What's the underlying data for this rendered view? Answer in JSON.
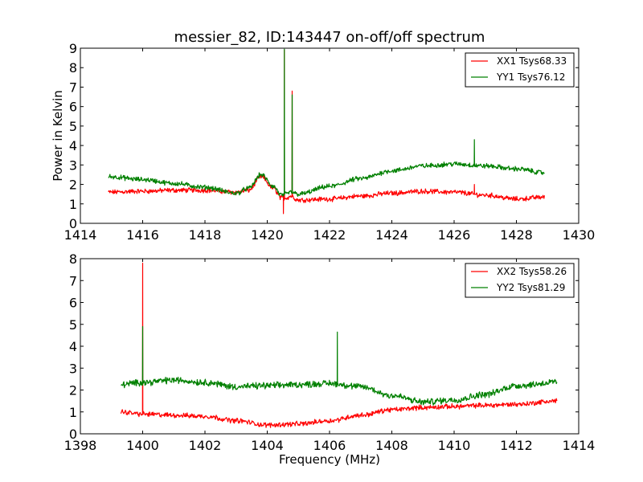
{
  "chart_data": [
    {
      "type": "line",
      "title": "messier_82, ID:143447 on-off/off spectrum",
      "xlabel": "",
      "ylabel": "Power in Kelvin",
      "xlim": [
        1414,
        1430
      ],
      "ylim": [
        0,
        9
      ],
      "xticks": [
        "1414",
        "1416",
        "1418",
        "1420",
        "1422",
        "1424",
        "1426",
        "1428",
        "1430"
      ],
      "yticks": [
        "0",
        "1",
        "2",
        "3",
        "4",
        "5",
        "6",
        "7",
        "8",
        "9"
      ],
      "legend_position": "top-right",
      "grid": false,
      "series": [
        {
          "name": "XX1 Tsys68.33",
          "color": "#ff0000",
          "noise": 0.1,
          "x": [
            1414.9,
            1416.0,
            1417.0,
            1418.0,
            1419.0,
            1419.4,
            1419.8,
            1420.2,
            1420.45,
            1420.6,
            1420.75,
            1421.0,
            1422.0,
            1423.0,
            1424.0,
            1425.0,
            1426.0,
            1427.0,
            1428.0,
            1428.9
          ],
          "y": [
            1.6,
            1.65,
            1.7,
            1.7,
            1.6,
            1.7,
            2.4,
            1.8,
            1.3,
            1.3,
            1.4,
            1.2,
            1.25,
            1.4,
            1.55,
            1.65,
            1.6,
            1.45,
            1.25,
            1.35
          ],
          "peaks": [
            {
              "x": 1420.55,
              "y": 8.9
            },
            {
              "x": 1420.8,
              "y": 6.8
            },
            {
              "x": 1420.52,
              "y": 0.5
            },
            {
              "x": 1426.65,
              "y": 2.0
            }
          ]
        },
        {
          "name": "YY1 Tsys76.12",
          "color": "#008000",
          "noise": 0.1,
          "x": [
            1414.9,
            1416.0,
            1417.0,
            1418.0,
            1419.0,
            1419.4,
            1419.8,
            1420.2,
            1420.45,
            1420.6,
            1420.75,
            1421.0,
            1422.0,
            1423.0,
            1424.0,
            1425.0,
            1426.0,
            1427.0,
            1428.0,
            1428.9
          ],
          "y": [
            2.4,
            2.25,
            2.05,
            1.85,
            1.55,
            1.8,
            2.5,
            1.9,
            1.45,
            1.5,
            1.6,
            1.5,
            1.9,
            2.3,
            2.7,
            2.95,
            3.05,
            2.95,
            2.8,
            2.6
          ],
          "peaks": [
            {
              "x": 1420.55,
              "y": 8.95
            },
            {
              "x": 1420.8,
              "y": 6.6
            },
            {
              "x": 1426.65,
              "y": 4.3
            }
          ]
        }
      ]
    },
    {
      "type": "line",
      "title": "",
      "xlabel": "Frequency (MHz)",
      "ylabel": "",
      "xlim": [
        1398,
        1414
      ],
      "ylim": [
        0,
        8
      ],
      "xticks": [
        "1398",
        "1400",
        "1402",
        "1404",
        "1406",
        "1408",
        "1410",
        "1412",
        "1414"
      ],
      "yticks": [
        "0",
        "1",
        "2",
        "3",
        "4",
        "5",
        "6",
        "7",
        "8"
      ],
      "legend_position": "top-right",
      "grid": false,
      "series": [
        {
          "name": "XX2 Tsys58.26",
          "color": "#ff0000",
          "noise": 0.09,
          "x": [
            1399.3,
            1400.0,
            1401.0,
            1402.0,
            1403.0,
            1404.0,
            1405.0,
            1406.0,
            1407.0,
            1408.0,
            1409.0,
            1410.0,
            1411.0,
            1412.0,
            1413.3
          ],
          "y": [
            1.0,
            0.9,
            0.85,
            0.8,
            0.6,
            0.4,
            0.45,
            0.6,
            0.85,
            1.1,
            1.2,
            1.25,
            1.3,
            1.35,
            1.5
          ],
          "peaks": [
            {
              "x": 1400.0,
              "y": 7.8
            }
          ]
        },
        {
          "name": "YY2 Tsys81.29",
          "color": "#008000",
          "noise": 0.12,
          "x": [
            1399.3,
            1400.0,
            1401.0,
            1402.0,
            1403.0,
            1404.0,
            1405.0,
            1406.0,
            1407.0,
            1408.0,
            1409.0,
            1410.0,
            1411.0,
            1412.0,
            1413.3
          ],
          "y": [
            2.25,
            2.35,
            2.45,
            2.35,
            2.15,
            2.2,
            2.25,
            2.3,
            2.15,
            1.75,
            1.45,
            1.55,
            1.8,
            2.2,
            2.35
          ],
          "peaks": [
            {
              "x": 1400.0,
              "y": 4.9
            },
            {
              "x": 1406.25,
              "y": 4.65
            }
          ]
        }
      ]
    }
  ]
}
